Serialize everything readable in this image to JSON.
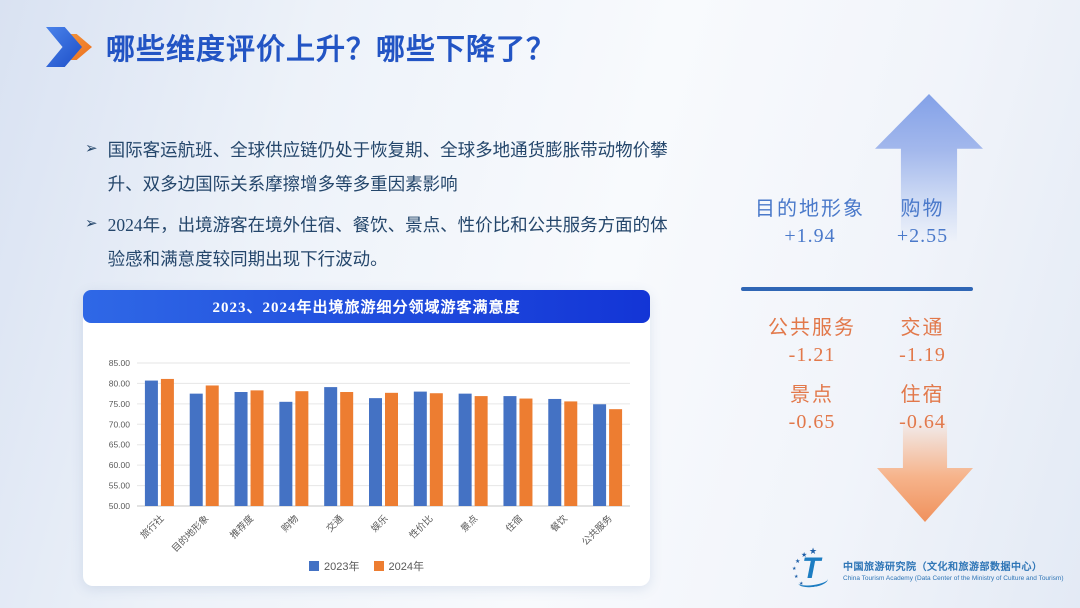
{
  "slide": {
    "title": "哪些维度评价上升？哪些下降了？",
    "bullet_marker": "➢",
    "bullets": [
      "国际客运航班、全球供应链仍处于恢复期、全球多地通货膨胀带动物价攀升、双多边国际关系摩擦增多等多重因素影响",
      "2024年，出境游客在境外住宿、餐饮、景点、性价比和公共服务方面的体验感和满意度较同期出现下行波动。"
    ]
  },
  "chart_data": {
    "type": "bar",
    "title": "2023、2024年出境旅游细分领域游客满意度",
    "categories": [
      "旅行社",
      "目的地形象",
      "推荐度",
      "购物",
      "交通",
      "娱乐",
      "性价比",
      "景点",
      "住宿",
      "餐饮",
      "公共服务"
    ],
    "series": [
      {
        "name": "2023年",
        "color": "#4472c4",
        "values": [
          80.7,
          77.5,
          77.9,
          75.5,
          79.1,
          76.4,
          78.0,
          77.5,
          76.9,
          76.2,
          74.9
        ]
      },
      {
        "name": "2024年",
        "color": "#ed7d31",
        "values": [
          81.1,
          79.5,
          78.3,
          78.1,
          77.9,
          77.7,
          77.6,
          76.9,
          76.3,
          75.6,
          73.7
        ]
      }
    ],
    "xlabel": "",
    "ylabel": "",
    "ylim": [
      50,
      85
    ],
    "ytick_step": 5,
    "ytick_format_decimals": 2,
    "grid": true,
    "legend_position": "bottom"
  },
  "right_panel": {
    "up_arrow_icon": "arrow-up",
    "down_arrow_icon": "arrow-down",
    "increases": [
      {
        "label": "目的地形象",
        "value": "+1.94"
      },
      {
        "label": "购物",
        "value": "+2.55"
      }
    ],
    "decreases": [
      {
        "label": "公共服务",
        "value": "-1.21"
      },
      {
        "label": "交通",
        "value": "-1.19"
      },
      {
        "label": "景点",
        "value": "-0.65"
      },
      {
        "label": "住宿",
        "value": "-0.64"
      }
    ]
  },
  "footer": {
    "org_cn": "中国旅游研究院（文化和旅游部数据中心）",
    "org_en": "China Tourism Academy (Data Center of the Ministry of Culture and Tourism)"
  },
  "icons": {
    "title_chevron": "double-chevron-right",
    "legend_swatch": "■",
    "logo": "china-tourism-academy-logo"
  },
  "colors": {
    "title_blue": "#2254c4",
    "body_text": "#24466b",
    "banner_start": "#2f68e6",
    "banner_end": "#1335d6",
    "increase_text": "#4a79ca",
    "decrease_text": "#e2784a",
    "divider_blue": "#2f66b5",
    "axis_text": "#595959",
    "logo_blue": "#2e75b6"
  }
}
